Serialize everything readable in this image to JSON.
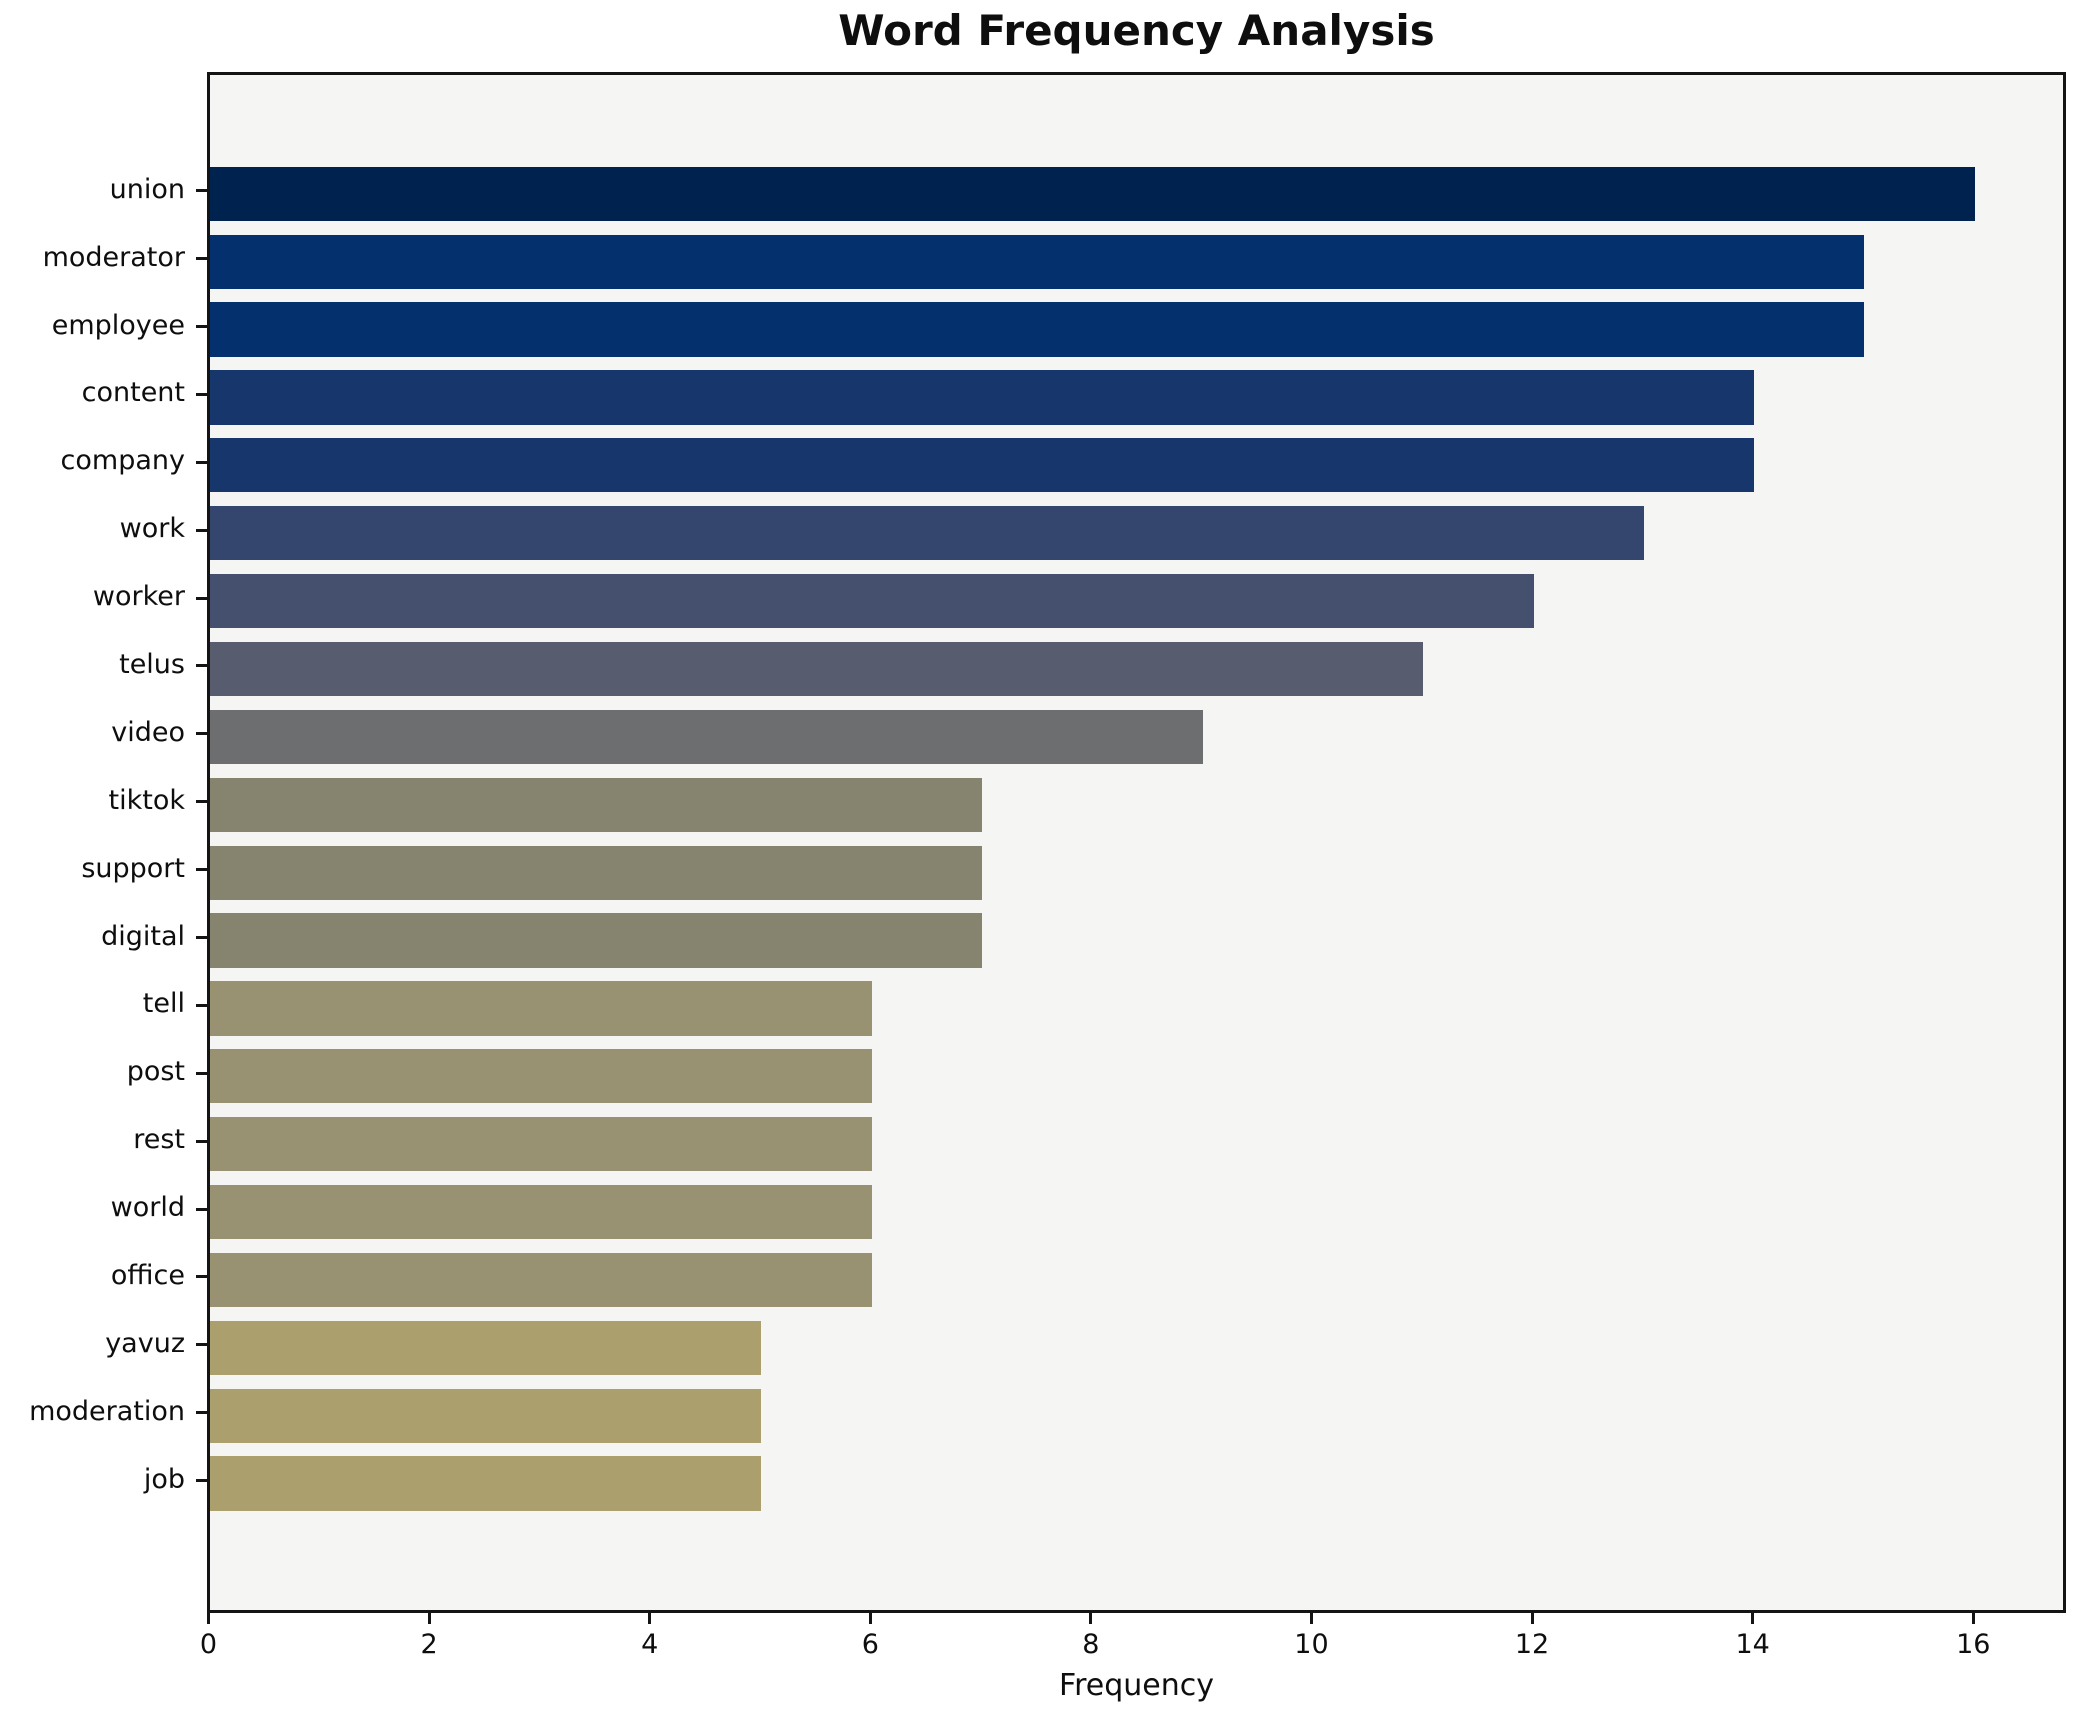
{
  "chart_data": {
    "type": "bar",
    "orientation": "horizontal",
    "title": "Word Frequency Analysis",
    "xlabel": "Frequency",
    "ylabel": "",
    "categories": [
      "union",
      "moderator",
      "employee",
      "content",
      "company",
      "work",
      "worker",
      "telus",
      "video",
      "tiktok",
      "support",
      "digital",
      "tell",
      "post",
      "rest",
      "world",
      "office",
      "yavuz",
      "moderation",
      "job"
    ],
    "values": [
      16,
      15,
      15,
      14,
      14,
      13,
      12,
      11,
      9,
      7,
      7,
      7,
      6,
      6,
      6,
      6,
      6,
      5,
      5,
      5
    ],
    "bar_colors": [
      "#00224e",
      "#04316e",
      "#04316e",
      "#17366b",
      "#17366b",
      "#35466e",
      "#45506e",
      "#575c6e",
      "#6c6e70",
      "#86846f",
      "#86846f",
      "#86846f",
      "#999272",
      "#999272",
      "#999272",
      "#999272",
      "#999272",
      "#ab9f6e",
      "#ab9f6e",
      "#ab9f6e"
    ],
    "xticks": [
      0,
      2,
      4,
      6,
      8,
      10,
      12,
      14,
      16
    ],
    "xlim": [
      0,
      16.8
    ],
    "grid": false,
    "legend": "none",
    "plot_background": "#f5f5f4",
    "figure_background": "#ffffff",
    "spine_color": "#141414",
    "text_color": "#0e0e0e"
  }
}
